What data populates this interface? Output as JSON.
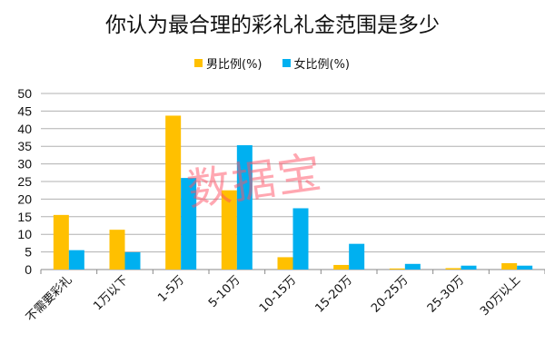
{
  "chart_data": {
    "type": "bar",
    "title": "你认为最合理的彩礼礼金范围是多少",
    "categories": [
      "不需要彩礼",
      "1万以下",
      "1-5万",
      "5-10万",
      "10-15万",
      "15-20万",
      "20-25万",
      "25-30万",
      "30万以上"
    ],
    "series": [
      {
        "name": "男比例(%)",
        "color": "#FFC000",
        "values": [
          15.5,
          11.3,
          43.7,
          22.5,
          3.5,
          1.3,
          0.3,
          0.4,
          1.8
        ]
      },
      {
        "name": "女比例(%)",
        "color": "#00B0F0",
        "values": [
          5.5,
          4.9,
          26.0,
          35.3,
          17.4,
          7.3,
          1.6,
          1.1,
          1.1
        ]
      }
    ],
    "ylim": [
      0,
      50
    ],
    "yticks": [
      0,
      5,
      10,
      15,
      20,
      25,
      30,
      35,
      40,
      45,
      50
    ],
    "grid": true,
    "legend": "top",
    "xlabel": "",
    "ylabel": ""
  },
  "watermark": "数据宝"
}
